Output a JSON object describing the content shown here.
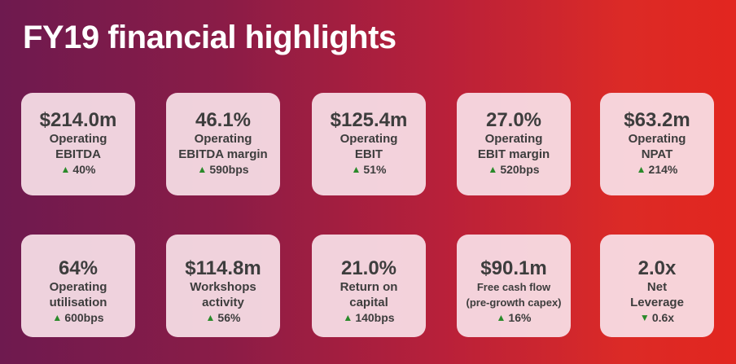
{
  "title": "FY19 financial highlights",
  "accent_colors": {
    "arrow_green": "#2a8a2a",
    "gradient_left": "#6e1a4f",
    "gradient_right": "#e2261f"
  },
  "row1": [
    {
      "value": "$214.0m",
      "label1": "Operating",
      "label2": "EBITDA",
      "arrow": "▲",
      "change": "40%"
    },
    {
      "value": "46.1%",
      "label1": "Operating",
      "label2": "EBITDA margin",
      "arrow": "▲",
      "change": "590bps"
    },
    {
      "value": "$125.4m",
      "label1": "Operating",
      "label2": "EBIT",
      "arrow": "▲",
      "change": "51%"
    },
    {
      "value": "27.0%",
      "label1": "Operating",
      "label2": "EBIT margin",
      "arrow": "▲",
      "change": "520bps"
    },
    {
      "value": "$63.2m",
      "label1": "Operating",
      "label2": "NPAT",
      "arrow": "▲",
      "change": "214%"
    }
  ],
  "row2": [
    {
      "value": "64%",
      "label1": "Operating",
      "label2": "utilisation",
      "arrow": "▲",
      "change": "600bps"
    },
    {
      "value": "$114.8m",
      "label1": "Workshops",
      "label2": "activity",
      "arrow": "▲",
      "change": "56%"
    },
    {
      "value": "21.0%",
      "label1": "Return on",
      "label2": "capital",
      "arrow": "▲",
      "change": "140bps"
    },
    {
      "value": "$90.1m",
      "label1": "Free cash flow",
      "label2": "(pre-growth capex)",
      "arrow": "▲",
      "change": "16%"
    },
    {
      "value": "2.0x",
      "label1": "Net",
      "label2": "Leverage",
      "arrow": "▼",
      "change": "0.6x"
    }
  ]
}
